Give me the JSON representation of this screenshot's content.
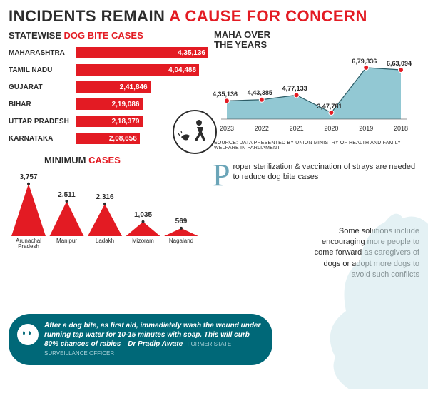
{
  "title": {
    "prefix": "INCIDENTS REMAIN ",
    "red": "A CAUSE FOR CONCERN",
    "color_dark": "#2c2c2c",
    "color_red": "#e31b23"
  },
  "bars": {
    "title_prefix": "STATEWISE ",
    "title_red": "DOG BITE CASES",
    "type": "bar",
    "orientation": "horizontal",
    "bar_color": "#e31b23",
    "value_color": "#ffffff",
    "label_fontsize": 10,
    "value_fontsize": 10,
    "max_value": 435136,
    "rows": [
      {
        "label": "MAHARASHTRA",
        "value": 435136,
        "disp": "4,35,136",
        "pct": 100
      },
      {
        "label": "TAMIL NADU",
        "value": 404488,
        "disp": "4,04,488",
        "pct": 93
      },
      {
        "label": "GUJARAT",
        "value": 241846,
        "disp": "2,41,846",
        "pct": 56
      },
      {
        "label": "BIHAR",
        "value": 219086,
        "disp": "2,19,086",
        "pct": 50
      },
      {
        "label": "UTTAR PRADESH",
        "value": 218379,
        "disp": "2,18,379",
        "pct": 50
      },
      {
        "label": "KARNATAKA",
        "value": 208656,
        "disp": "2,08,656",
        "pct": 48
      }
    ]
  },
  "line": {
    "title": "MAHA OVER THE YEARS",
    "type": "line-area",
    "area_fill": "#6db5c4",
    "marker_color": "#e31b23",
    "marker_stroke": "#ffffff",
    "line_color": "#2c2c2c",
    "ylim": [
      300000,
      700000
    ],
    "points": [
      {
        "x": "2023",
        "value": 435136,
        "disp": "4,35,136"
      },
      {
        "x": "2022",
        "value": 443385,
        "disp": "4,43,385"
      },
      {
        "x": "2021",
        "value": 477133,
        "disp": "4,77,133"
      },
      {
        "x": "2020",
        "value": 347781,
        "disp": "3,47,781"
      },
      {
        "x": "2019",
        "value": 679336,
        "disp": "6,79,336"
      },
      {
        "x": "2018",
        "value": 663094,
        "disp": "6,63,094"
      }
    ],
    "source": "SOURCE: DATA PRESENTED BY UNION MINISTRY OF HEALTH AND FAMILY WELFARE IN PARLIAMENT"
  },
  "min": {
    "title_prefix": "MINIMUM ",
    "title_red": "CASES",
    "type": "triangle-column",
    "fill_color": "#e31b23",
    "ylim": [
      0,
      4000
    ],
    "points": [
      {
        "label": "Arunachal Pradesh",
        "value": 3757,
        "disp": "3,757"
      },
      {
        "label": "Manipur",
        "value": 2511,
        "disp": "2,511"
      },
      {
        "label": "Ladakh",
        "value": 2316,
        "disp": "2,316"
      },
      {
        "label": "Mizoram",
        "value": 1035,
        "disp": "1,035"
      },
      {
        "label": "Nagaland",
        "value": 569,
        "disp": "569"
      }
    ]
  },
  "pullquote": {
    "drop_cap": "P",
    "text": "roper sterilization & vaccination of strays are needed to reduce dog bite cases",
    "drop_color": "#6ba5b8"
  },
  "solution": "Some solutions include encouraging more people to come forward as caregivers of dogs or adopt more dogs to avoid such conflicts",
  "quote": {
    "text": "After a dog bite, as first aid, immediately wash the wound under running tap water for 10-15 minutes with soap. This will curb 80% chances of rabies—Dr Pradip Awate",
    "attr": " | FORMER STATE SURVEILLANCE OFFICER",
    "bg": "#006878",
    "fg": "#ffffff"
  },
  "colors": {
    "background": "#ffffff",
    "text": "#2c2c2c",
    "accent": "#e31b23",
    "teal": "#006878",
    "area": "#6db5c4"
  }
}
